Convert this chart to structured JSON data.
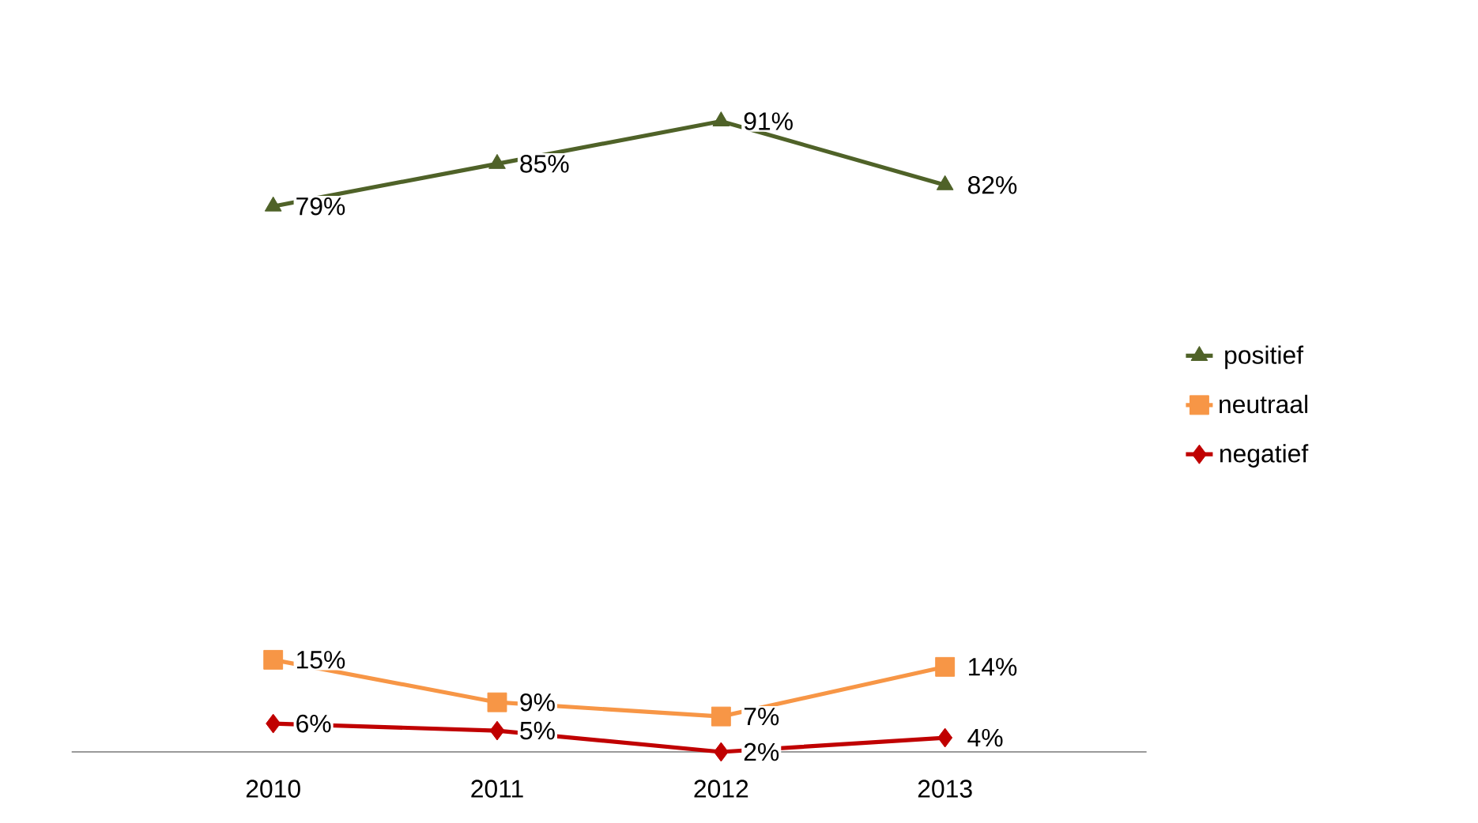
{
  "chart_data": {
    "type": "line",
    "categories": [
      "2010",
      "2011",
      "2012",
      "2013"
    ],
    "series": [
      {
        "name": "negatief",
        "color": "#c00000",
        "marker": "diamond",
        "values": [
          6,
          5,
          2,
          4
        ],
        "value_labels": [
          "6%",
          "5%",
          "2%",
          "4%"
        ]
      },
      {
        "name": "neutraal",
        "color": "#f79646",
        "marker": "square",
        "values": [
          15,
          9,
          7,
          14
        ],
        "value_labels": [
          "15%",
          "9%",
          "7%",
          "14%"
        ]
      },
      {
        "name": "positief",
        "color": "#4f6228",
        "marker": "triangle",
        "values": [
          79,
          85,
          91,
          82
        ],
        "value_labels": [
          "79%",
          "85%",
          "91%",
          "82%"
        ]
      }
    ],
    "tick_labels": "x",
    "legend": "right",
    "grid": false
  }
}
